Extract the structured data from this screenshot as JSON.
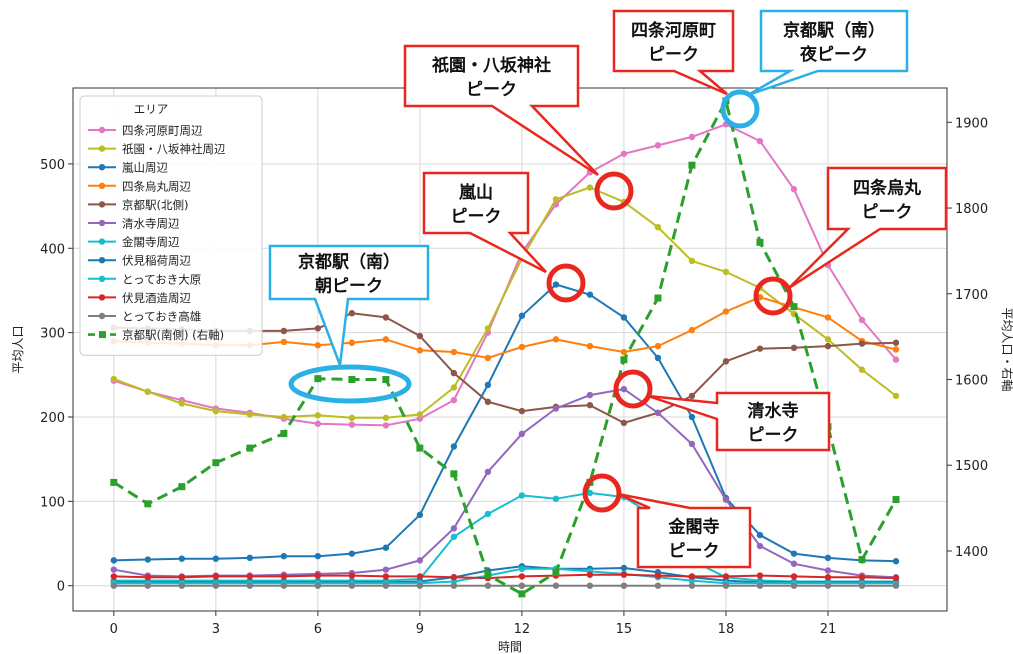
{
  "chart_data": {
    "type": "line",
    "xlabel": "時間",
    "ylabel_left": "平均人口",
    "ylabel_right": "平均人口・右軸",
    "x": [
      0,
      1,
      2,
      3,
      4,
      5,
      6,
      7,
      8,
      9,
      10,
      11,
      12,
      13,
      14,
      15,
      16,
      17,
      18,
      19,
      20,
      21,
      22,
      23
    ],
    "x_ticks": [
      0,
      3,
      6,
      9,
      12,
      15,
      18,
      21
    ],
    "xlim": [
      -1.2,
      24.5
    ],
    "ylim_left": [
      -30,
      590
    ],
    "yticks_left": [
      0,
      100,
      200,
      300,
      400,
      500
    ],
    "ylim_right": [
      1330,
      1940
    ],
    "yticks_right": [
      1400,
      1500,
      1600,
      1700,
      1800,
      1900
    ],
    "grid": true,
    "legend": {
      "title": "エリア",
      "placement": "top-left"
    },
    "series": [
      {
        "name": "四条河原町周辺",
        "color": "#e377c2",
        "axis": "left",
        "style": "solid",
        "values": [
          243,
          230,
          220,
          210,
          205,
          198,
          192,
          191,
          190,
          198,
          220,
          300,
          395,
          452,
          490,
          512,
          522,
          532,
          547,
          527,
          470,
          380,
          315,
          268
        ]
      },
      {
        "name": "祇園・八坂神社周辺",
        "color": "#bcbd22",
        "axis": "left",
        "style": "solid",
        "values": [
          245,
          230,
          216,
          207,
          203,
          200,
          202,
          199,
          199,
          203,
          235,
          305,
          388,
          458,
          472,
          455,
          425,
          385,
          372,
          353,
          322,
          292,
          256,
          225
        ]
      },
      {
        "name": "嵐山周辺",
        "color": "#1f77b4",
        "axis": "left",
        "style": "solid",
        "values": [
          30,
          31,
          32,
          32,
          33,
          35,
          35,
          38,
          45,
          84,
          165,
          238,
          320,
          357,
          345,
          318,
          270,
          200,
          104,
          60,
          38,
          33,
          30,
          29
        ]
      },
      {
        "name": "四条烏丸周辺",
        "color": "#ff7f0e",
        "axis": "left",
        "style": "solid",
        "values": [
          290,
          288,
          287,
          285,
          285,
          289,
          285,
          288,
          292,
          279,
          277,
          270,
          283,
          292,
          284,
          277,
          284,
          303,
          325,
          342,
          330,
          318,
          290,
          280
        ]
      },
      {
        "name": "京都駅(北側)",
        "color": "#8c564b",
        "axis": "left",
        "style": "solid",
        "values": [
          306,
          305,
          304,
          302,
          302,
          302,
          305,
          323,
          318,
          296,
          252,
          218,
          207,
          212,
          214,
          193,
          205,
          225,
          266,
          281,
          282,
          284,
          287,
          288
        ]
      },
      {
        "name": "清水寺周辺",
        "color": "#9467bd",
        "axis": "left",
        "style": "solid",
        "values": [
          19,
          12,
          11,
          12,
          12,
          13,
          14,
          15,
          19,
          30,
          68,
          135,
          180,
          210,
          226,
          233,
          205,
          168,
          102,
          47,
          26,
          18,
          12,
          10
        ]
      },
      {
        "name": "金閣寺周辺",
        "color": "#17becf",
        "axis": "left",
        "style": "solid",
        "values": [
          6,
          6,
          6,
          6,
          6,
          6,
          6,
          6,
          6,
          8,
          58,
          85,
          107,
          103,
          110,
          105,
          80,
          30,
          10,
          6,
          5,
          5,
          5,
          5
        ]
      },
      {
        "name": "伏見稲荷周辺",
        "color": "#1f77b4",
        "axis": "left",
        "style": "solid",
        "values": [
          4,
          4,
          4,
          4,
          4,
          4,
          4,
          4,
          4,
          5,
          10,
          18,
          23,
          20,
          20,
          21,
          16,
          10,
          6,
          4,
          4,
          4,
          4,
          4
        ]
      },
      {
        "name": "とっておき大原",
        "color": "#17becf",
        "axis": "left",
        "style": "solid",
        "values": [
          3,
          3,
          3,
          3,
          3,
          3,
          3,
          3,
          3,
          3,
          5,
          12,
          20,
          20,
          17,
          14,
          10,
          6,
          3,
          3,
          3,
          3,
          3,
          3
        ]
      },
      {
        "name": "伏見酒造周辺",
        "color": "#d62728",
        "axis": "left",
        "style": "solid",
        "values": [
          11,
          10,
          10,
          11,
          11,
          11,
          12,
          12,
          11,
          11,
          10,
          9,
          11,
          12,
          13,
          13,
          12,
          11,
          11,
          12,
          11,
          10,
          10,
          9
        ]
      },
      {
        "name": "とっておき高雄",
        "color": "#7f7f7f",
        "axis": "left",
        "style": "solid",
        "values": [
          0,
          0,
          0,
          0,
          0,
          0,
          0,
          0,
          0,
          0,
          0,
          0,
          0,
          0,
          0,
          0,
          0,
          0,
          0,
          0,
          0,
          0,
          0,
          0
        ]
      },
      {
        "name": "京都駅(南側) (右軸)",
        "color": "#2ca02c",
        "axis": "right",
        "style": "dashed",
        "values": [
          1480,
          1455,
          1475,
          1503,
          1520,
          1537,
          1601,
          1600,
          1600,
          1520,
          1490,
          1372,
          1350,
          1375,
          1480,
          1623,
          1695,
          1850,
          1925,
          1760,
          1685,
          1545,
          1390,
          1460
        ]
      }
    ]
  },
  "annotations": [
    {
      "text": [
        "京都駅（南）",
        "朝ピーク"
      ],
      "style": "blue",
      "target": "ellipse"
    },
    {
      "text": [
        "嵐山",
        "ピーク"
      ],
      "style": "red"
    },
    {
      "text": [
        "祇園・八坂神社",
        "ピーク"
      ],
      "style": "red"
    },
    {
      "text": [
        "四条河原町",
        "ピーク"
      ],
      "style": "red"
    },
    {
      "text": [
        "京都駅（南）",
        "夜ピーク"
      ],
      "style": "blue"
    },
    {
      "text": [
        "四条烏丸",
        "ピーク"
      ],
      "style": "red"
    },
    {
      "text": [
        "清水寺",
        "ピーク"
      ],
      "style": "red"
    },
    {
      "text": [
        "金閣寺",
        "ピーク"
      ],
      "style": "red"
    }
  ],
  "colors": {
    "red_callout": "#e8281e",
    "blue_callout": "#2ab0e6"
  }
}
